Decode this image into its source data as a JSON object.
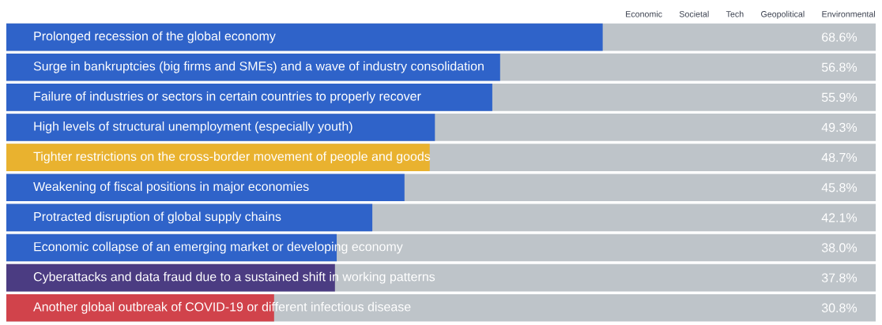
{
  "chart_data": {
    "type": "bar",
    "orientation": "horizontal",
    "xlim": [
      0,
      100
    ],
    "categories": [
      "Prolonged recession of the global economy",
      "Surge in bankruptcies (big firms and SMEs) and a wave of industry consolidation",
      "Failure of industries or sectors in certain countries to properly recover",
      "High levels of structural unemployment (especially youth)",
      "Tighter restrictions on the cross-border movement of people and goods",
      "Weakening of fiscal positions in major economies",
      "Protracted disruption of global supply chains",
      "Economic collapse of an emerging market or developing economy",
      "Cyberattacks and data fraud due to a sustained shift in working patterns",
      "Another global outbreak of COVID-19 or different infectious disease"
    ],
    "values": [
      68.6,
      56.8,
      55.9,
      49.3,
      48.7,
      45.8,
      42.1,
      38.0,
      37.8,
      30.8
    ],
    "colors": [
      "#2f63c9",
      "#2f63c9",
      "#2f63c9",
      "#2f63c9",
      "#e9b22f",
      "#2f63c9",
      "#2f63c9",
      "#2f63c9",
      "#4b3c82",
      "#d1434b"
    ],
    "value_labels": [
      "68.6%",
      "56.8%",
      "55.9%",
      "49.3%",
      "48.7%",
      "45.8%",
      "42.1%",
      "38.0%",
      "37.8%",
      "30.8%"
    ],
    "annotations": [
      "Economic",
      "Societal",
      "Tech",
      "Geopolitical",
      "Environmental"
    ]
  }
}
